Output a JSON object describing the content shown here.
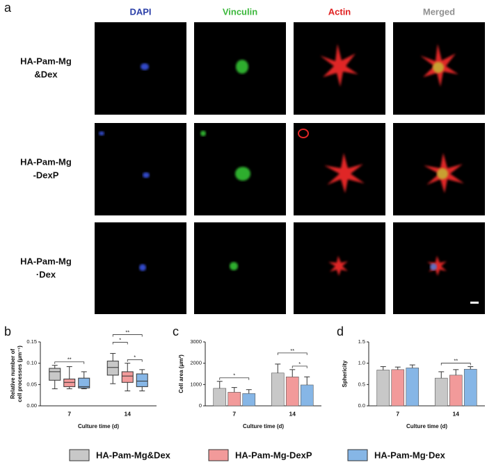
{
  "panel_labels": [
    "a",
    "b",
    "c",
    "d"
  ],
  "columns": [
    "DAPI",
    "Vinculin",
    "Actin",
    "Merged"
  ],
  "column_colors": [
    "#2b3fa8",
    "#3cb83c",
    "#e02020",
    "#909090"
  ],
  "row_labels": [
    [
      "HA-Pam-Mg",
      "&Dex"
    ],
    [
      "HA-Pam-Mg",
      "-DexP"
    ],
    [
      "HA-Pam-Mg",
      "·Dex"
    ]
  ],
  "chart_data": [
    {
      "type": "box",
      "y_label": [
        "Relative number of",
        "cell processes (μm⁻¹)"
      ],
      "x_label": "Culture time (d)",
      "categories": [
        "7",
        "14"
      ],
      "ylim": [
        0,
        0.15
      ],
      "yticks": [
        {
          "value": 0,
          "label": "0.00"
        },
        {
          "value": 0.05,
          "label": "0.05"
        },
        {
          "value": 0.1,
          "label": "0.10"
        },
        {
          "value": 0.15,
          "label": "0.15"
        }
      ],
      "series": [
        {
          "name": "HA-Pam-Mg&Dex",
          "color": "#c8c8c8",
          "min": [
            0.04,
            0.052
          ],
          "q1": [
            0.06,
            0.072
          ],
          "median": [
            0.08,
            0.09
          ],
          "q3": [
            0.088,
            0.105
          ],
          "max": [
            0.095,
            0.123
          ]
        },
        {
          "name": "HA-Pam-Mg-DexP",
          "color": "#f29a9a",
          "min": [
            0.04,
            0.035
          ],
          "q1": [
            0.045,
            0.055
          ],
          "median": [
            0.055,
            0.07
          ],
          "q3": [
            0.063,
            0.08
          ],
          "max": [
            0.092,
            0.1
          ]
        },
        {
          "name": "HA-Pam-Mg·Dex",
          "color": "#86b6e6",
          "min": [
            0.04,
            0.035
          ],
          "q1": [
            0.042,
            0.045
          ],
          "median": [
            0.045,
            0.058
          ],
          "q3": [
            0.065,
            0.075
          ],
          "max": [
            0.08,
            0.085
          ]
        }
      ],
      "significance": [
        {
          "label": "**",
          "category": 0,
          "series": [
            0,
            2
          ]
        },
        {
          "label": "*",
          "category": 1,
          "series": [
            1,
            2
          ]
        },
        {
          "label": "*",
          "category": 1,
          "series": [
            0,
            1
          ]
        },
        {
          "label": "**",
          "category": 1,
          "series": [
            0,
            2
          ]
        }
      ]
    },
    {
      "type": "bar",
      "y_label": [
        "Cell area (μm²)"
      ],
      "x_label": "Culture time (d)",
      "categories": [
        "7",
        "14"
      ],
      "ylim": [
        0,
        3000
      ],
      "yticks": [
        0,
        1000,
        2000,
        3000
      ],
      "series": [
        {
          "name": "HA-Pam-Mg&Dex",
          "color": "#c8c8c8",
          "values": [
            820,
            1540
          ],
          "errors": [
            330,
            420
          ]
        },
        {
          "name": "HA-Pam-Mg-DexP",
          "color": "#f29a9a",
          "values": [
            640,
            1360
          ],
          "errors": [
            220,
            340
          ]
        },
        {
          "name": "HA-Pam-Mg·Dex",
          "color": "#86b6e6",
          "values": [
            580,
            980
          ],
          "errors": [
            180,
            380
          ]
        }
      ],
      "significance": [
        {
          "label": "*",
          "category": 0,
          "series": [
            0,
            2
          ]
        },
        {
          "label": "*",
          "category": 1,
          "series": [
            1,
            2
          ]
        },
        {
          "label": "**",
          "category": 1,
          "series": [
            0,
            2
          ]
        }
      ]
    },
    {
      "type": "bar",
      "y_label": [
        "Sphericity"
      ],
      "x_label": "Culture time (d)",
      "categories": [
        "7",
        "14"
      ],
      "ylim": [
        0,
        1.5
      ],
      "yticks": [
        {
          "value": 0,
          "label": "0.0"
        },
        {
          "value": 0.5,
          "label": "0.5"
        },
        {
          "value": 1,
          "label": "1.0"
        },
        {
          "value": 1.5,
          "label": "1.5"
        }
      ],
      "series": [
        {
          "name": "HA-Pam-Mg&Dex",
          "color": "#c8c8c8",
          "values": [
            0.84,
            0.65
          ],
          "errors": [
            0.08,
            0.15
          ]
        },
        {
          "name": "HA-Pam-Mg-DexP",
          "color": "#f29a9a",
          "values": [
            0.85,
            0.72
          ],
          "errors": [
            0.06,
            0.13
          ]
        },
        {
          "name": "HA-Pam-Mg·Dex",
          "color": "#86b6e6",
          "values": [
            0.89,
            0.86
          ],
          "errors": [
            0.07,
            0.06
          ]
        }
      ],
      "significance": [
        {
          "label": "**",
          "category": 1,
          "series": [
            0,
            2
          ]
        }
      ]
    }
  ]
}
